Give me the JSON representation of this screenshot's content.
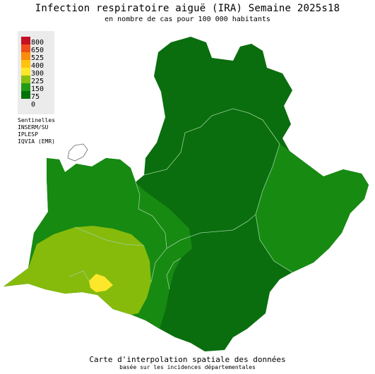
{
  "title": "Infection respiratoire aiguë (IRA) Semaine 2025s18",
  "subtitle": "en nombre de cas pour 100 000 habitants",
  "legend": {
    "items": [
      {
        "label": "800",
        "color": "#c40f24"
      },
      {
        "label": "650",
        "color": "#ef4e1b"
      },
      {
        "label": "525",
        "color": "#f98c0d"
      },
      {
        "label": "400",
        "color": "#ffc20e"
      },
      {
        "label": "300",
        "color": "#fde72a"
      },
      {
        "label": "225",
        "color": "#8abf11"
      },
      {
        "label": "150",
        "color": "#249b17"
      },
      {
        "label": "75",
        "color": "#057109"
      },
      {
        "label": "0",
        "color": ""
      }
    ]
  },
  "sources": [
    "Sentinelles",
    "INSERM/SU",
    "IPLESP",
    "IQVIA (EMR)"
  ],
  "footer": {
    "line1": "Carte d'interpolation spatiale des données",
    "line2": "basée sur les incidences départementales"
  },
  "map_zones": {
    "dark_green": "#0a6e0e",
    "medium_green": "#178a12",
    "yellow_green": "#86bb0c",
    "yellow": "#fde72a",
    "border": "#9ad09a"
  }
}
